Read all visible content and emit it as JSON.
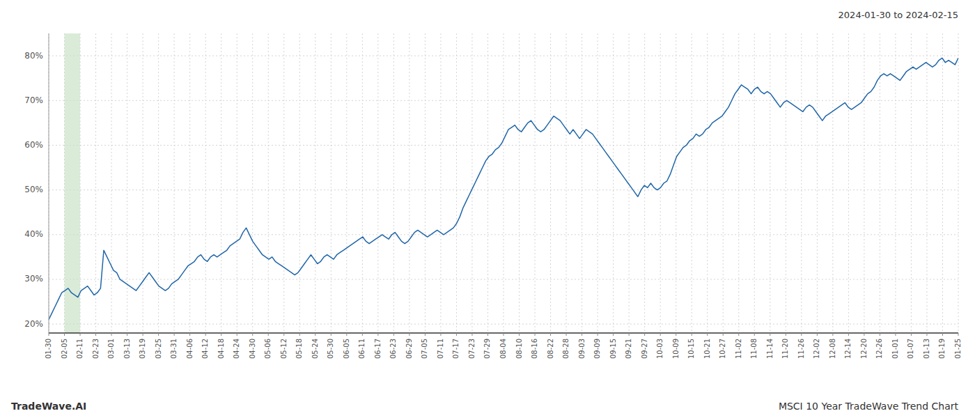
{
  "chart_data": {
    "type": "line",
    "title": "2024-01-30 to 2024-02-15",
    "annotations": [
      "TradeWave.AI",
      "MSCI 10 Year TradeWave Trend Chart"
    ],
    "color": "#2066a8",
    "grid": true,
    "highlight": {
      "from": "02-05",
      "to": "02-11",
      "color": "#daecd8"
    },
    "ylim": [
      18,
      85
    ],
    "yticks": [
      {
        "value": 20,
        "label": "20%"
      },
      {
        "value": 30,
        "label": "30%"
      },
      {
        "value": 40,
        "label": "40%"
      },
      {
        "value": 50,
        "label": "50%"
      },
      {
        "value": 60,
        "label": "60%"
      },
      {
        "value": 70,
        "label": "70%"
      },
      {
        "value": 80,
        "label": "80%"
      }
    ],
    "xticks": [
      "01-30",
      "02-05",
      "02-11",
      "02-23",
      "03-01",
      "03-13",
      "03-19",
      "03-25",
      "03-31",
      "04-06",
      "04-12",
      "04-18",
      "04-24",
      "04-30",
      "05-06",
      "05-12",
      "05-18",
      "05-24",
      "05-30",
      "06-05",
      "06-11",
      "06-17",
      "06-23",
      "06-29",
      "07-05",
      "07-11",
      "07-17",
      "07-23",
      "07-29",
      "08-04",
      "08-10",
      "08-16",
      "08-22",
      "08-28",
      "09-03",
      "09-09",
      "09-15",
      "09-21",
      "09-27",
      "10-03",
      "10-09",
      "10-15",
      "10-21",
      "10-27",
      "11-02",
      "11-08",
      "11-14",
      "11-20",
      "11-26",
      "12-02",
      "12-08",
      "12-14",
      "12-20",
      "12-26",
      "01-01",
      "01-07",
      "01-13",
      "01-19",
      "01-25"
    ],
    "values": [
      21.0,
      22.5,
      24.0,
      25.5,
      27.0,
      27.5,
      28.0,
      27.0,
      26.5,
      26.0,
      27.5,
      28.0,
      28.5,
      27.5,
      26.5,
      27.0,
      28.0,
      36.5,
      35.0,
      33.5,
      32.0,
      31.5,
      30.0,
      29.5,
      29.0,
      28.5,
      28.0,
      27.5,
      28.5,
      29.5,
      30.5,
      31.5,
      30.5,
      29.5,
      28.5,
      28.0,
      27.5,
      28.0,
      29.0,
      29.5,
      30.0,
      31.0,
      32.0,
      33.0,
      33.5,
      34.0,
      35.0,
      35.5,
      34.5,
      34.0,
      35.0,
      35.5,
      35.0,
      35.5,
      36.0,
      36.5,
      37.5,
      38.0,
      38.5,
      39.0,
      40.5,
      41.5,
      40.0,
      38.5,
      37.5,
      36.5,
      35.5,
      35.0,
      34.5,
      35.0,
      34.0,
      33.5,
      33.0,
      32.5,
      32.0,
      31.5,
      31.0,
      31.5,
      32.5,
      33.5,
      34.5,
      35.5,
      34.5,
      33.5,
      34.0,
      35.0,
      35.5,
      35.0,
      34.5,
      35.5,
      36.0,
      36.5,
      37.0,
      37.5,
      38.0,
      38.5,
      39.0,
      39.5,
      38.5,
      38.0,
      38.5,
      39.0,
      39.5,
      40.0,
      39.5,
      39.0,
      40.0,
      40.5,
      39.5,
      38.5,
      38.0,
      38.5,
      39.5,
      40.5,
      41.0,
      40.5,
      40.0,
      39.5,
      40.0,
      40.5,
      41.0,
      40.5,
      40.0,
      40.5,
      41.0,
      41.5,
      42.5,
      44.0,
      46.0,
      47.5,
      49.0,
      50.5,
      52.0,
      53.5,
      55.0,
      56.5,
      57.5,
      58.0,
      59.0,
      59.5,
      60.5,
      62.0,
      63.5,
      64.0,
      64.5,
      63.5,
      63.0,
      64.0,
      65.0,
      65.5,
      64.5,
      63.5,
      63.0,
      63.5,
      64.5,
      65.5,
      66.5,
      66.0,
      65.5,
      64.5,
      63.5,
      62.5,
      63.5,
      62.5,
      61.5,
      62.5,
      63.5,
      63.0,
      62.5,
      61.5,
      60.5,
      59.5,
      58.5,
      57.5,
      56.5,
      55.5,
      54.5,
      53.5,
      52.5,
      51.5,
      50.5,
      49.5,
      48.5,
      50.0,
      51.0,
      50.5,
      51.5,
      50.5,
      50.0,
      50.5,
      51.5,
      52.0,
      53.5,
      55.5,
      57.5,
      58.5,
      59.5,
      60.0,
      61.0,
      61.5,
      62.5,
      62.0,
      62.5,
      63.5,
      64.0,
      65.0,
      65.5,
      66.0,
      66.5,
      67.5,
      68.5,
      70.0,
      71.5,
      72.5,
      73.5,
      73.0,
      72.5,
      71.5,
      72.5,
      73.0,
      72.0,
      71.5,
      72.0,
      71.5,
      70.5,
      69.5,
      68.5,
      69.5,
      70.0,
      69.5,
      69.0,
      68.5,
      68.0,
      67.5,
      68.5,
      69.0,
      68.5,
      67.5,
      66.5,
      65.5,
      66.5,
      67.0,
      67.5,
      68.0,
      68.5,
      69.0,
      69.5,
      68.5,
      68.0,
      68.5,
      69.0,
      69.5,
      70.5,
      71.5,
      72.0,
      73.0,
      74.5,
      75.5,
      76.0,
      75.5,
      76.0,
      75.5,
      75.0,
      74.5,
      75.5,
      76.5,
      77.0,
      77.5,
      77.0,
      77.5,
      78.0,
      78.5,
      78.0,
      77.5,
      78.0,
      79.0,
      79.5,
      78.5,
      79.0,
      78.5,
      78.0,
      79.5
    ]
  }
}
